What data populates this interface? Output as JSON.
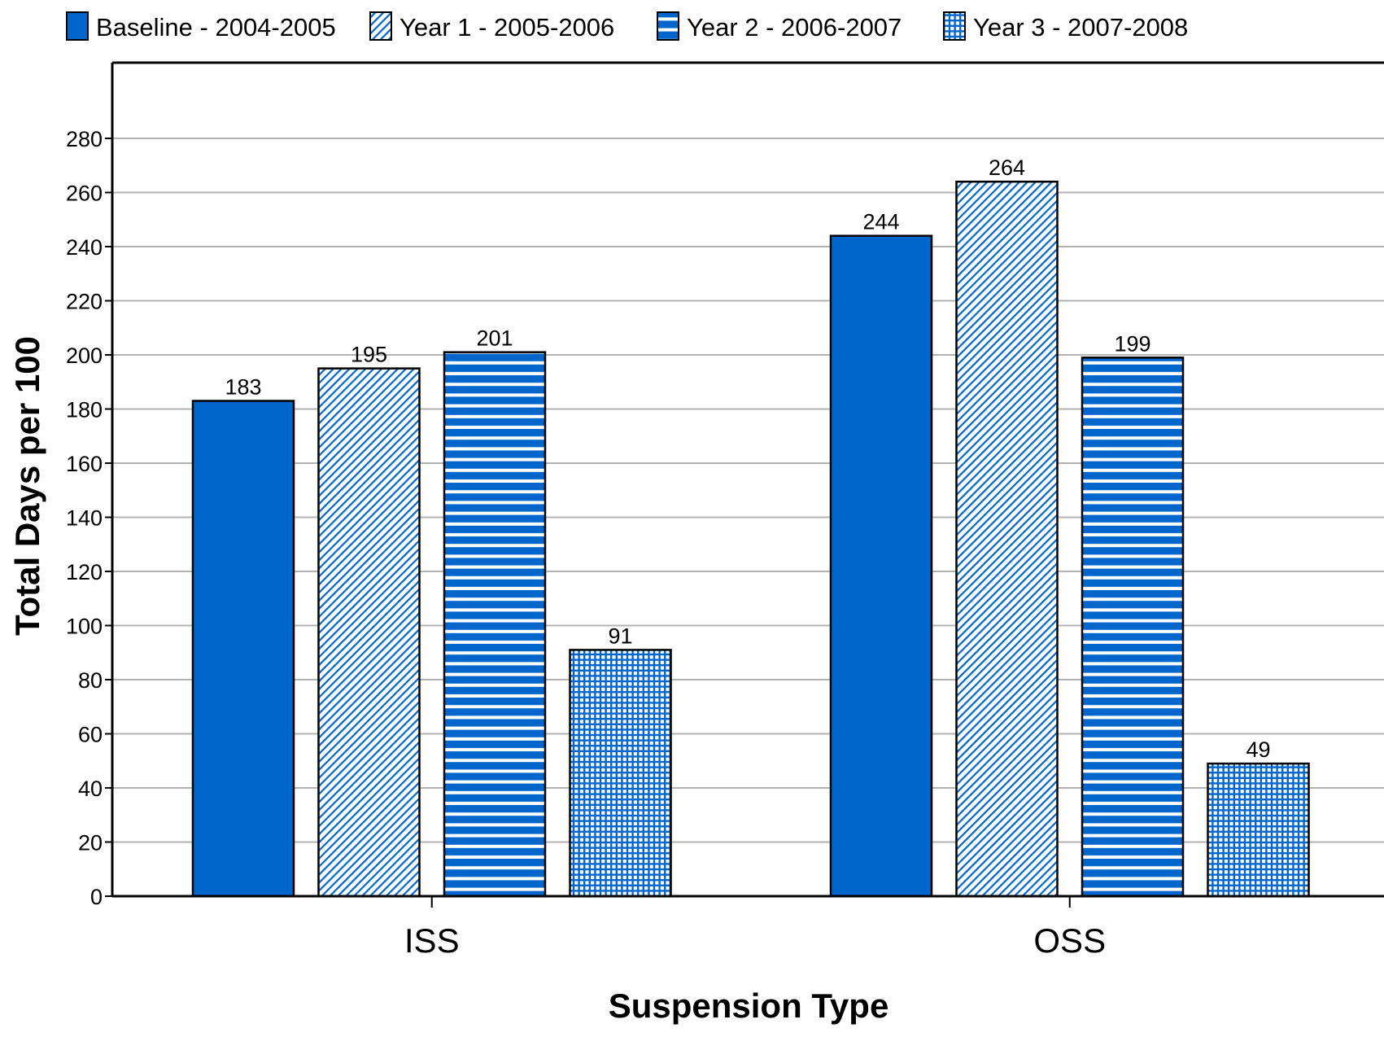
{
  "chart_data": {
    "type": "bar",
    "title": "",
    "xlabel": "Suspension Type",
    "ylabel": "Total Days per 100",
    "categories": [
      "ISS",
      "OSS"
    ],
    "series": [
      {
        "name": "Baseline - 2004-2005",
        "values": [
          183,
          244
        ],
        "pattern": "solid"
      },
      {
        "name": "Year 1 - 2005-2006",
        "values": [
          195,
          264
        ],
        "pattern": "diagonal"
      },
      {
        "name": "Year 2 - 2006-2007",
        "values": [
          201,
          199
        ],
        "pattern": "horizontal"
      },
      {
        "name": "Year 3 - 2007-2008",
        "values": [
          91,
          49
        ],
        "pattern": "grid"
      }
    ],
    "ylim": [
      0,
      300
    ],
    "yticks": [
      0,
      20,
      40,
      60,
      80,
      100,
      120,
      140,
      160,
      180,
      200,
      220,
      240,
      260,
      280
    ],
    "grid": true,
    "legend": "top",
    "data_labels": true,
    "colors": {
      "bar_fill": "#0066cc",
      "bar_outline": "#000000",
      "gridline": "#b3b3b3",
      "axis": "#000000"
    }
  }
}
